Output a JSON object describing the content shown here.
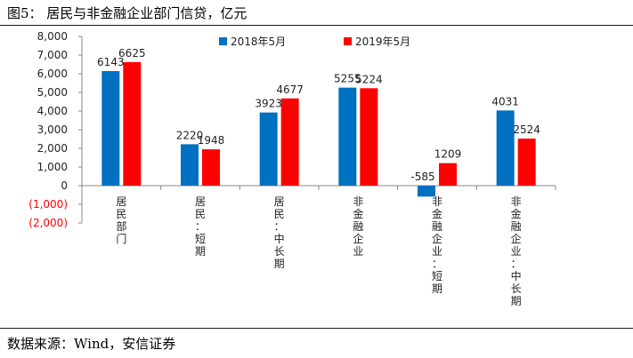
{
  "title": "图5：  居民与非金融企业部门信贷，亿元",
  "source": "数据来源：Wind，安信证券",
  "chart_data": {
    "type": "bar",
    "title": "居民与非金融企业部门信贷，亿元",
    "xlabel": "",
    "ylabel": "",
    "ylim": [
      -2000,
      8000
    ],
    "yticks": [
      8000,
      7000,
      6000,
      5000,
      4000,
      3000,
      2000,
      1000,
      0,
      -1000,
      -2000
    ],
    "ytick_labels": [
      "8,000",
      "7,000",
      "6,000",
      "5,000",
      "4,000",
      "3,000",
      "2,000",
      "1,000",
      "0",
      "(1,000)",
      "(2,000)"
    ],
    "categories": [
      "居民部门",
      "居民：短期",
      "居民：中长期",
      "非金融企业",
      "非金融企业：短期",
      "非金融企业：中长期"
    ],
    "series": [
      {
        "name": "2018年5月",
        "color": "#0070C0",
        "values": [
          6143,
          2220,
          3923,
          5255,
          -585,
          4031
        ]
      },
      {
        "name": "2019年5月",
        "color": "#FF0000",
        "values": [
          6625,
          1948,
          4677,
          5224,
          1209,
          2524
        ]
      }
    ],
    "legend": "top-center",
    "grid": false,
    "negative_tick_color": "#FF0000"
  }
}
